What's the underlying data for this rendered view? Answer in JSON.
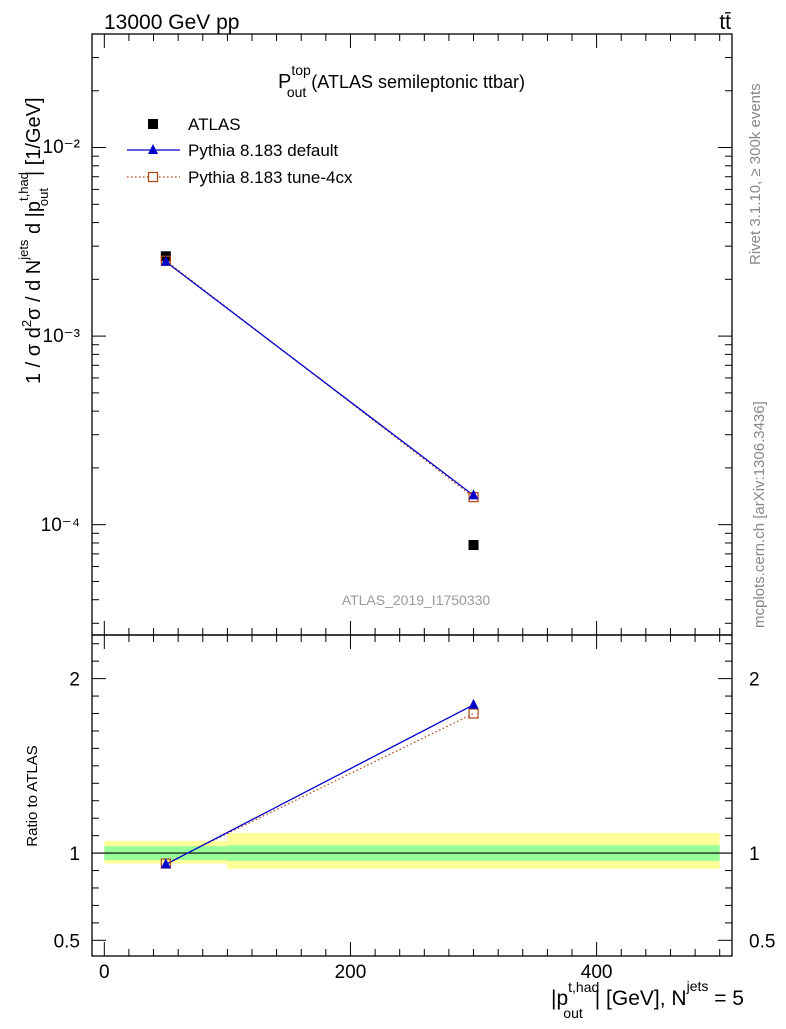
{
  "header": {
    "energy_label": "13000 GeV pp",
    "process_label": "tt̄"
  },
  "side": {
    "rivet_label": "Rivet 3.1.10, ≥ 300k events",
    "mcplots_label": "mcplots.cern.ch [arXiv:1306.3436]"
  },
  "chart_data": {
    "type": "scatter",
    "title_main": "P",
    "title_sup": "top",
    "title_sub": "out",
    "title_rest": " (ATLAS semileptonic ttbar)",
    "analysis_tag": "ATLAS_2019_I1750330",
    "ylabel": "1 / σ d²σ / d N^jets d |p_out^t,had| [1/GeV]",
    "xlabel": "|p_out^t,had| [GeV], N^jets = 5",
    "xlim": [
      -10,
      510
    ],
    "ylim_main": [
      2.6e-05,
      0.04
    ],
    "yscale_main": "log",
    "main_y_tick_labels": [
      "10⁻²",
      "10⁻³",
      "10⁻⁴"
    ],
    "x_tick_labels": [
      "0",
      "200",
      "400"
    ],
    "x_ticks": [
      0,
      200,
      400
    ],
    "legend": [
      "ATLAS",
      "Pythia 8.183 default",
      "Pythia 8.183 tune-4cx"
    ],
    "series": [
      {
        "name": "ATLAS",
        "marker": "square",
        "color": "#000000",
        "x": [
          50,
          300
        ],
        "y": [
          0.00265,
          7.8e-05
        ]
      },
      {
        "name": "Pythia 8.183 default",
        "marker": "triangle",
        "color": "#0000cc",
        "line": "solid",
        "x": [
          50,
          300
        ],
        "y": [
          0.00248,
          0.000143
        ]
      },
      {
        "name": "Pythia 8.183 tune-4cx",
        "marker": "open-square",
        "color": "#b04010",
        "line": "dotted",
        "x": [
          50,
          300
        ],
        "y": [
          0.00251,
          0.00014
        ]
      }
    ],
    "ratio": {
      "ylabel": "Ratio to ATLAS",
      "ylim": [
        0.41,
        2.25
      ],
      "y_tick_labels": [
        "0.5",
        "1",
        "2"
      ],
      "y_ticks": [
        0.5,
        1,
        2
      ],
      "bands": [
        {
          "x0": 0,
          "x1": 100,
          "green_lo": 0.96,
          "green_hi": 1.04,
          "yellow_lo": 0.94,
          "yellow_hi": 1.07
        },
        {
          "x0": 100,
          "x1": 500,
          "green_lo": 0.955,
          "green_hi": 1.045,
          "yellow_lo": 0.91,
          "yellow_hi": 1.115
        }
      ],
      "series": [
        {
          "name": "Pythia 8.183 default",
          "x": [
            50,
            300
          ],
          "y": [
            0.935,
            1.85
          ]
        },
        {
          "name": "Pythia 8.183 tune-4cx",
          "x": [
            50,
            300
          ],
          "y": [
            0.94,
            1.8
          ]
        }
      ]
    }
  }
}
